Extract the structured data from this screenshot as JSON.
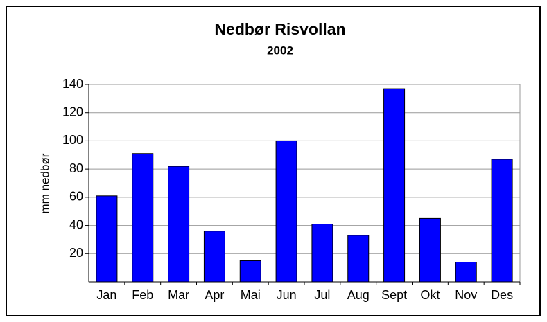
{
  "chart_data": {
    "type": "bar",
    "title": "Nedbør Risvollan",
    "subtitle": "2002",
    "y_label": "mm nedbør",
    "categories": [
      "Jan",
      "Feb",
      "Mar",
      "Apr",
      "Mai",
      "Jun",
      "Jul",
      "Aug",
      "Sept",
      "Okt",
      "Nov",
      "Des"
    ],
    "values": [
      61,
      91,
      82,
      36,
      15,
      100,
      41,
      33,
      137,
      45,
      14,
      87
    ],
    "color": "#0000ff",
    "ylim": [
      0,
      140
    ],
    "yticks": [
      20,
      40,
      60,
      80,
      100,
      120,
      140
    ],
    "grid": true
  }
}
